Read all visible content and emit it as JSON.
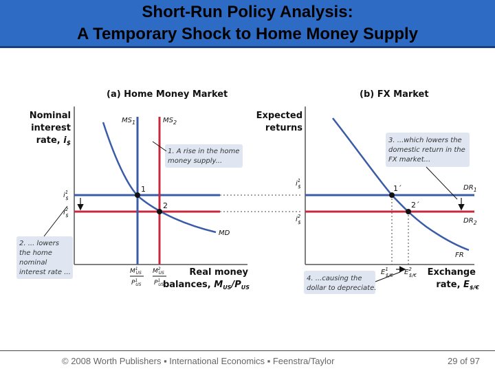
{
  "slide": {
    "title_line1": "Short-Run Policy Analysis:",
    "title_line2": "A Temporary Shock to Home Money Supply"
  },
  "panel_a": {
    "heading": "(a) Home Money Market",
    "yaxis_label": [
      "Nominal",
      "interest",
      "rate,"
    ],
    "yaxis_symbol": "i",
    "yaxis_symbol_sub": "$",
    "xaxis_label": [
      "Real money",
      "balances,"
    ],
    "xaxis_symbol": "M",
    "xaxis_symbol_sub": "US",
    "xaxis_symbol2": "/P",
    "xaxis_symbol2_sub": "US",
    "curve_ms1": "MS",
    "curve_ms1_sub": "1",
    "curve_ms2": "MS",
    "curve_ms2_sub": "2",
    "curve_md": "MD",
    "point1": "1",
    "point2": "2",
    "tick_i1": "i",
    "tick_i1_sup": "1",
    "tick_i1_sub": "$",
    "tick_i2": "i",
    "tick_i2_sup": "2",
    "tick_i2_sub": "$",
    "tick_m1_num": "M",
    "tick_m1_num_sup": "1",
    "tick_m1_num_sub": "US",
    "tick_m1_den": "P",
    "tick_m1_den_sup": "1",
    "tick_m1_den_sub": "US",
    "tick_m2_num": "M",
    "tick_m2_num_sup": "2",
    "tick_m2_num_sub": "US",
    "tick_m2_den": "P",
    "tick_m2_den_sup": "1",
    "tick_m2_den_sub": "US",
    "note1": [
      "1. A rise in the home",
      "money supply..."
    ],
    "note2": [
      "2. ... lowers",
      "the home",
      "nominal",
      "interest rate ..."
    ]
  },
  "panel_b": {
    "heading": "(b) FX Market",
    "yaxis_label": [
      "Expected",
      "returns"
    ],
    "xaxis_label": [
      "Exchange",
      "rate,"
    ],
    "xaxis_symbol": "E",
    "xaxis_symbol_sub": "$/€",
    "curve_dr1": "DR",
    "curve_dr1_sub": "1",
    "curve_dr2": "DR",
    "curve_dr2_sub": "2",
    "curve_fr": "FR",
    "point1": "1´",
    "point2": "2´",
    "tick_i1": "i",
    "tick_i1_sup": "1",
    "tick_i1_sub": "$",
    "tick_i2": "i",
    "tick_i2_sup": "2",
    "tick_i2_sub": "$",
    "tick_e1": "E",
    "tick_e1_sup": "1",
    "tick_e1_sub": "$/€",
    "tick_e2": "E",
    "tick_e2_sup": "2",
    "tick_e2_sub": "$/€",
    "note3": [
      "3. ...which lowers the",
      "domestic return in the",
      "FX market..."
    ],
    "note4": [
      "4. ...causing the",
      "dollar to depreciate."
    ]
  },
  "colors": {
    "blue_curve": "#3a5ba8",
    "red_curve": "#c8283c",
    "title_bar": "#2d6bc4",
    "note_box": "#dfe6f2"
  },
  "footer": {
    "copyright": "© 2008 Worth Publishers ▪ International Economics ▪ Feenstra/Taylor",
    "page": "29 of 97"
  }
}
